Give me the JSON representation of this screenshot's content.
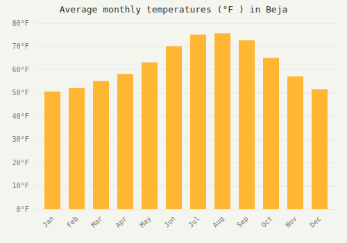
{
  "chart_data": {
    "type": "bar",
    "title": "Average monthly temperatures (°F ) in Beja",
    "categories": [
      "Jan",
      "Feb",
      "Mar",
      "Apr",
      "May",
      "Jun",
      "Jul",
      "Aug",
      "Sep",
      "Oct",
      "Nov",
      "Dec"
    ],
    "values": [
      50.5,
      52.0,
      55.0,
      58.0,
      63.0,
      70.0,
      75.0,
      75.5,
      72.5,
      65.0,
      57.0,
      51.5
    ],
    "color": "#FFB733",
    "ylim": [
      0,
      80
    ],
    "yticks": [
      {
        "value": 0,
        "label": "0°F"
      },
      {
        "value": 10,
        "label": "10°F"
      },
      {
        "value": 20,
        "label": "20°F"
      },
      {
        "value": 30,
        "label": "30°F"
      },
      {
        "value": 40,
        "label": "40°F"
      },
      {
        "value": 50,
        "label": "50°F"
      },
      {
        "value": 60,
        "label": "60°F"
      },
      {
        "value": 70,
        "label": "70°F"
      },
      {
        "value": 80,
        "label": "80°F"
      }
    ],
    "grid": true
  }
}
